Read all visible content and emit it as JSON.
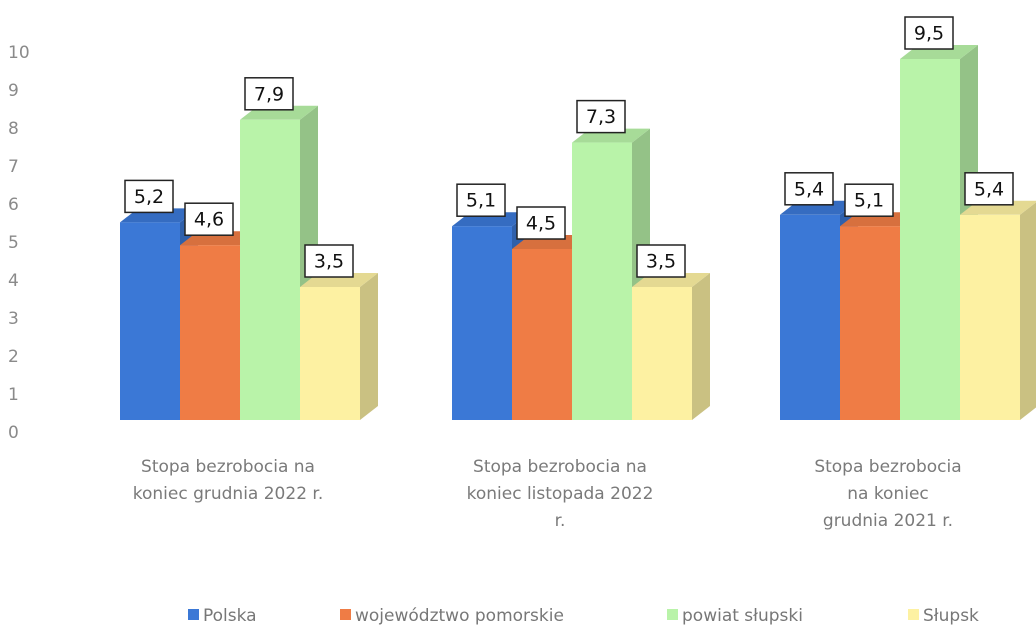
{
  "chart_data": {
    "type": "bar3d",
    "categories": [
      "Stopa bezrobocia na koniec grudnia 2022 r.",
      "Stopa bezrobocia na koniec listopada 2022 r.",
      "Stopa bezrobocia na koniec grudnia 2021 r."
    ],
    "series": [
      {
        "name": "Polska",
        "color": "#3b78d6",
        "values": [
          5.2,
          5.1,
          5.4
        ],
        "value_labels": [
          "5,2",
          "5,1",
          "5,4"
        ]
      },
      {
        "name": "województwo pomorskie",
        "color": "#ef7c45",
        "values": [
          4.6,
          4.5,
          5.1
        ],
        "value_labels": [
          "4,6",
          "4,5",
          "5,1"
        ]
      },
      {
        "name": "powiat słupski",
        "color": "#b9f3a9",
        "values": [
          7.9,
          7.3,
          9.5
        ],
        "value_labels": [
          "7,9",
          "7,3",
          "9,5"
        ]
      },
      {
        "name": "Słupsk",
        "color": "#fdf1a2",
        "values": [
          3.5,
          3.5,
          5.4
        ],
        "value_labels": [
          "3,5",
          "3,5",
          "5,4"
        ]
      }
    ],
    "ylim": [
      0,
      10
    ],
    "yticks": [
      0,
      1,
      2,
      3,
      4,
      5,
      6,
      7,
      8,
      9,
      10
    ],
    "legend": "bottom"
  }
}
